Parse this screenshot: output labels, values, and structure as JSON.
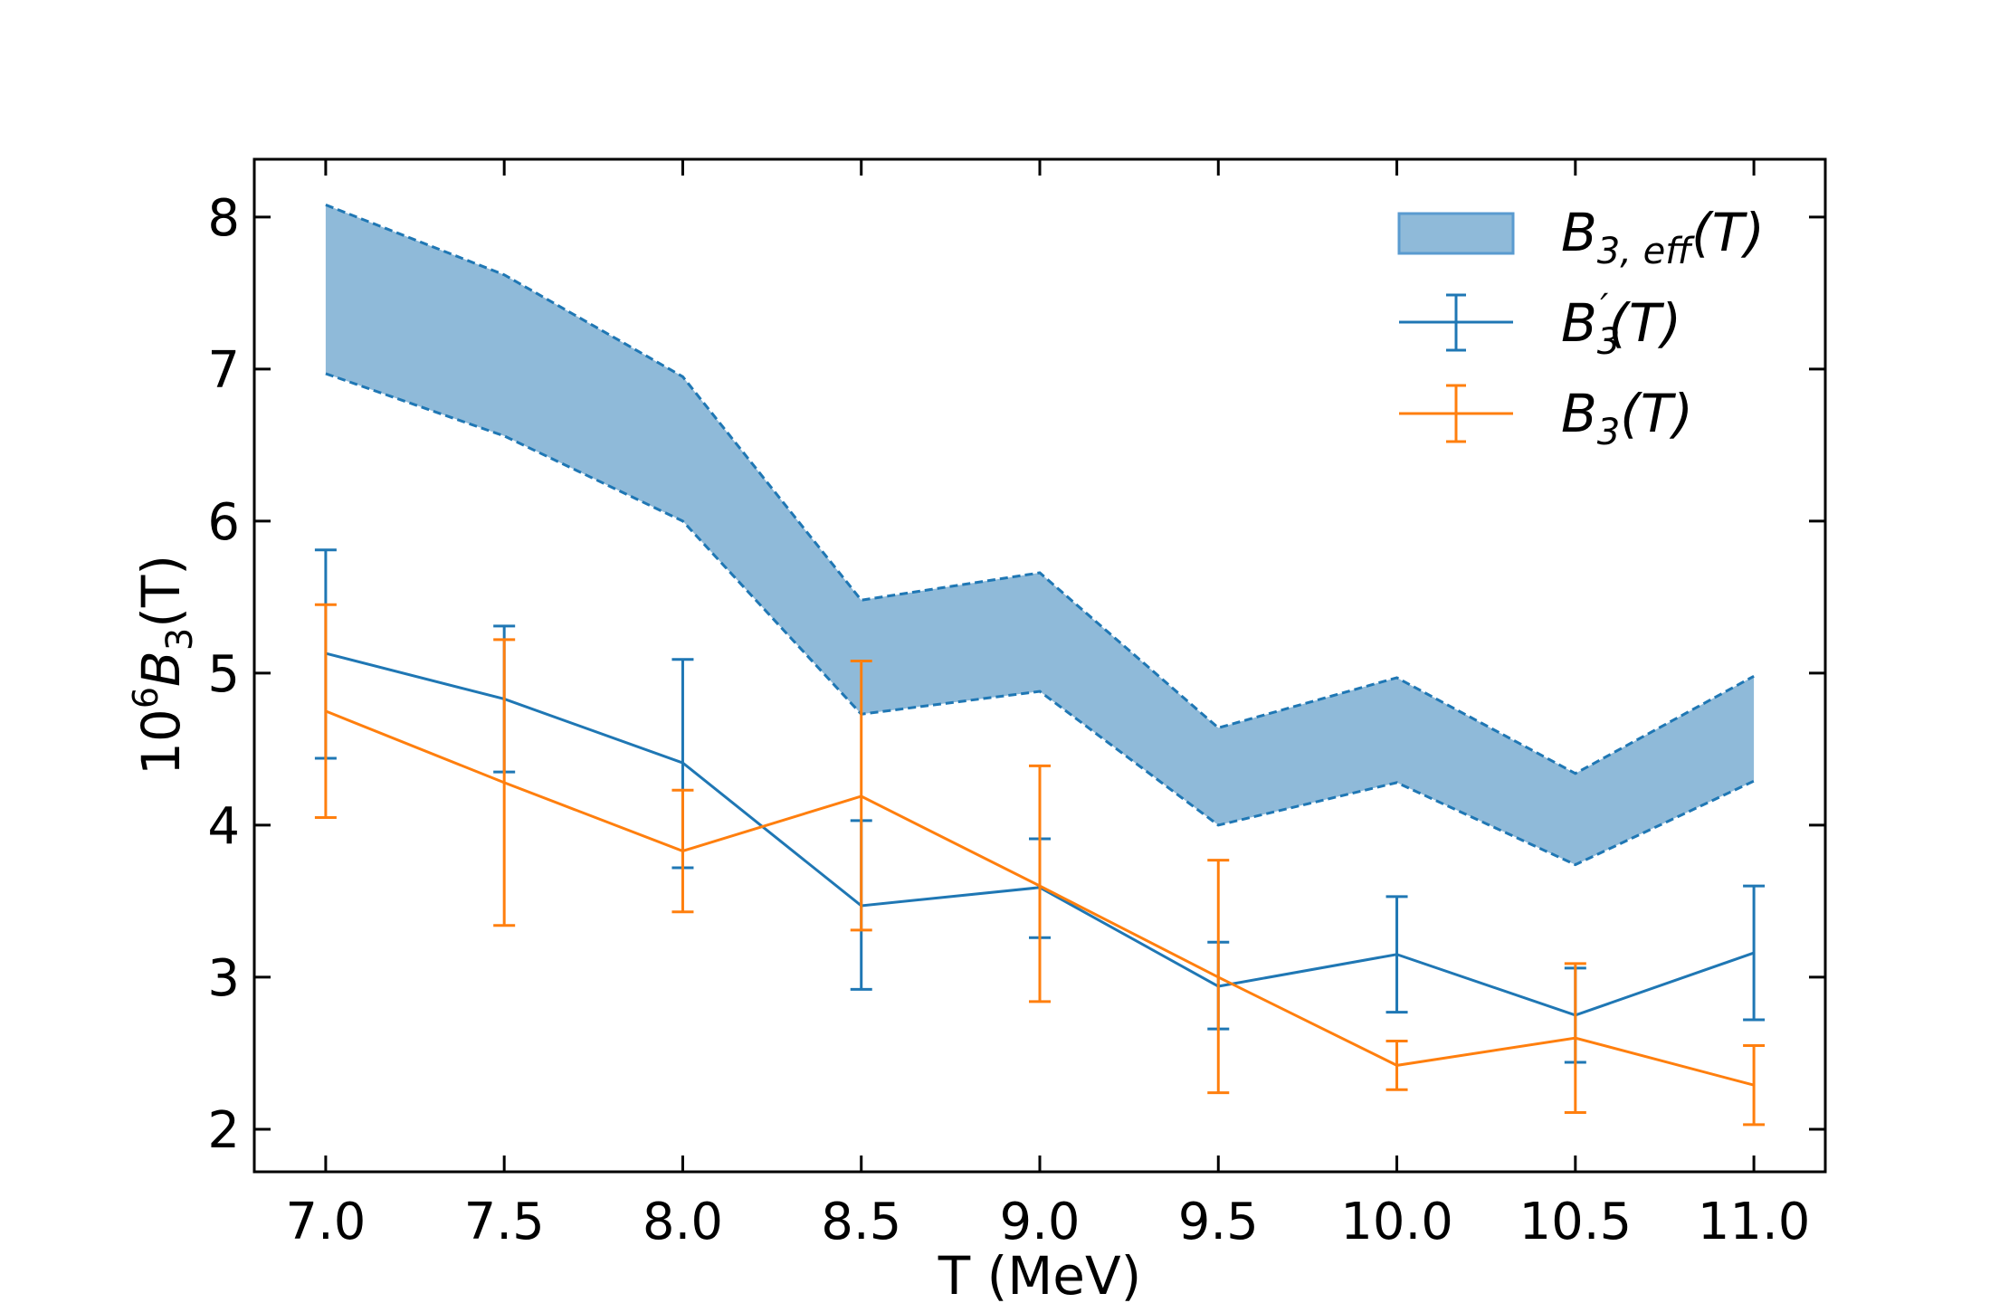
{
  "chart_data": {
    "type": "line",
    "title": "",
    "xlabel": "T (MeV)",
    "ylabel": {
      "prefix": "10",
      "sup": "6",
      "main": "B",
      "sub": "3",
      "suffix": "(T)"
    },
    "xlim": [
      6.8,
      11.2
    ],
    "ylim": [
      1.72,
      8.38
    ],
    "xticks": [
      7.0,
      7.5,
      8.0,
      8.5,
      9.0,
      9.5,
      10.0,
      10.5,
      11.0
    ],
    "xtick_labels": [
      "7.0",
      "7.5",
      "8.0",
      "8.5",
      "9.0",
      "9.5",
      "10.0",
      "10.5",
      "11.0"
    ],
    "yticks": [
      2,
      3,
      4,
      5,
      6,
      7,
      8
    ],
    "ytick_labels": [
      "2",
      "3",
      "4",
      "5",
      "6",
      "7",
      "8"
    ],
    "grid": false,
    "legend_position": "top-right",
    "band": {
      "name": "B3,eff(T)",
      "label": {
        "main": "B",
        "sub": "3, eff",
        "suffix": "(T)"
      },
      "color": "#1f77b4",
      "fill_color": "#8fbad9",
      "x": [
        7.0,
        7.5,
        8.0,
        8.5,
        9.0,
        9.5,
        10.0,
        10.5,
        11.0
      ],
      "lower": [
        6.97,
        6.56,
        6.0,
        4.73,
        4.88,
        4.0,
        4.28,
        3.74,
        4.29
      ],
      "upper": [
        8.08,
        7.62,
        6.95,
        5.48,
        5.66,
        4.64,
        4.97,
        4.34,
        4.98
      ]
    },
    "series": [
      {
        "name": "B3'(T)",
        "label": {
          "main": "B",
          "sub": "3",
          "prime": "′",
          "suffix": "(T)"
        },
        "color": "#1f77b4",
        "x": [
          7.0,
          7.5,
          8.0,
          8.5,
          9.0,
          9.5,
          10.0,
          10.5,
          11.0
        ],
        "values": [
          5.13,
          4.83,
          4.41,
          3.47,
          3.59,
          2.94,
          3.15,
          2.75,
          3.16
        ],
        "err_low": [
          4.44,
          4.35,
          3.72,
          2.92,
          3.26,
          2.66,
          2.77,
          2.44,
          2.72
        ],
        "err_high": [
          5.81,
          5.31,
          5.09,
          4.03,
          3.91,
          3.23,
          3.53,
          3.06,
          3.6
        ]
      },
      {
        "name": "B3(T)",
        "label": {
          "main": "B",
          "sub": "3",
          "prime": "",
          "suffix": "(T)"
        },
        "color": "#ff7f0e",
        "x": [
          7.0,
          7.5,
          8.0,
          8.5,
          9.0,
          9.5,
          10.0,
          10.5,
          11.0
        ],
        "values": [
          4.75,
          4.28,
          3.83,
          4.19,
          3.6,
          3.0,
          2.42,
          2.6,
          2.29
        ],
        "err_low": [
          4.05,
          3.34,
          3.43,
          3.31,
          2.84,
          2.24,
          2.26,
          2.11,
          2.03
        ],
        "err_high": [
          5.45,
          5.22,
          4.23,
          5.08,
          4.39,
          3.77,
          2.58,
          3.09,
          2.55
        ]
      }
    ]
  }
}
